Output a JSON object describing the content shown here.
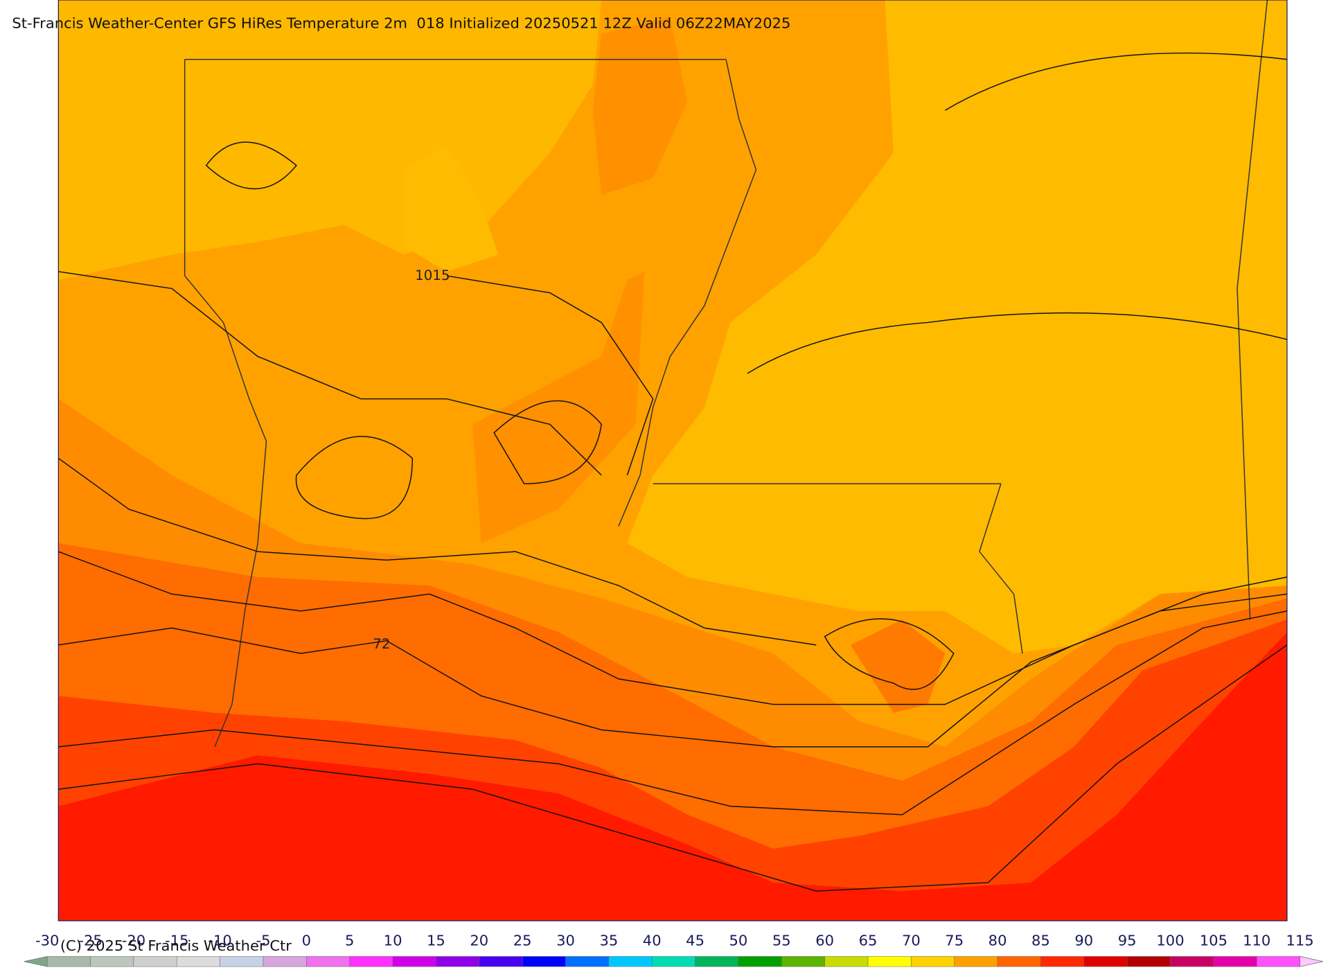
{
  "header": {
    "title": "St-Francis Weather-Center GFS HiRes Temperature 2m  018 Initialized 20250521 12Z Valid 06Z22MAY2025"
  },
  "map": {
    "contour_labels": [
      "1015",
      "72"
    ]
  },
  "colorbar": {
    "ticks": [
      -30,
      -25,
      -20,
      -15,
      -10,
      -5,
      0,
      5,
      10,
      15,
      20,
      25,
      30,
      35,
      40,
      45,
      50,
      55,
      60,
      65,
      70,
      75,
      80,
      85,
      90,
      95,
      100,
      105,
      110,
      115
    ],
    "colors": [
      "#a9b9a9",
      "#bcc6bc",
      "#cdd0cd",
      "#dcdcdc",
      "#c8d2e6",
      "#d7a6de",
      "#f070f0",
      "#ff30ff",
      "#d000e8",
      "#9000e8",
      "#4a00f0",
      "#0000ff",
      "#0070ff",
      "#00c8ff",
      "#00dcb4",
      "#00b45a",
      "#00a000",
      "#5ab400",
      "#c8dc00",
      "#ffff00",
      "#ffd200",
      "#ffa000",
      "#ff6400",
      "#ff2800",
      "#e00000",
      "#b40000",
      "#c80064",
      "#e600aa",
      "#ff50ff"
    ],
    "under_color": "#7fa88a",
    "over_color": "#ffc8ff"
  },
  "footer": {
    "copyright": "(C) 2025 St Francis Weather Ctr"
  }
}
